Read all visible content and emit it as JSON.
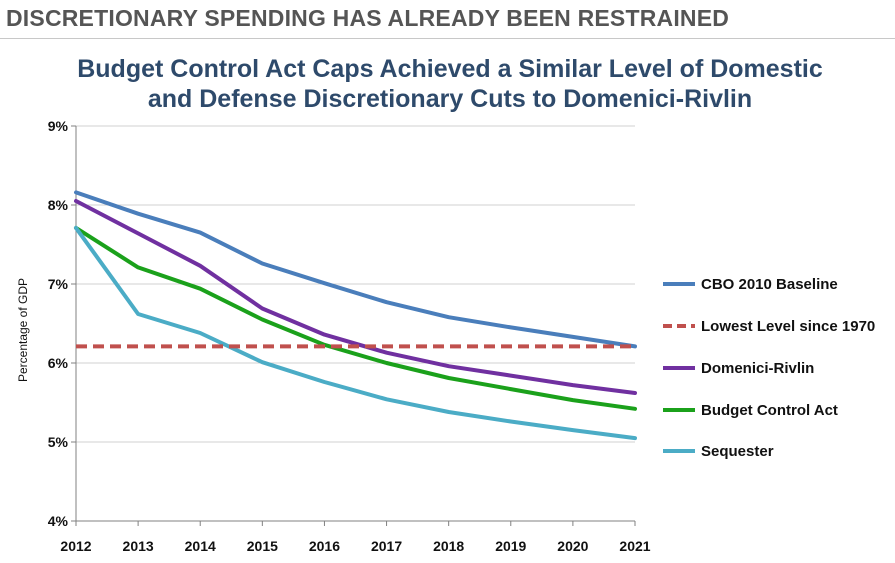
{
  "header": {
    "text": "DISCRETIONARY SPENDING HAS ALREADY BEEN RESTRAINED"
  },
  "chart_data": {
    "type": "line",
    "title_line1": "Budget Control Act Caps Achieved a Similar Level of Domestic",
    "title_line2": "and Defense Discretionary Cuts to Domenici-Rivlin",
    "ylabel": "Percentage of GDP",
    "xlabel": "",
    "x": [
      "2012",
      "2013",
      "2014",
      "2015",
      "2016",
      "2017",
      "2018",
      "2019",
      "2020",
      "2021"
    ],
    "ylim": [
      4,
      9
    ],
    "yticks": [
      4,
      5,
      6,
      7,
      8,
      9
    ],
    "ytick_labels": [
      "4%",
      "5%",
      "6%",
      "7%",
      "8%",
      "9%"
    ],
    "grid": true,
    "legend_position": "right",
    "series": [
      {
        "name": "CBO 2010 Baseline",
        "color": "#4a7ebb",
        "dashed": false,
        "values": [
          8.16,
          7.89,
          7.65,
          7.26,
          7.01,
          6.77,
          6.58,
          6.45,
          6.33,
          6.21
        ]
      },
      {
        "name": "Lowest Level since 1970",
        "color": "#c0504d",
        "dashed": true,
        "values": [
          6.21,
          6.21,
          6.21,
          6.21,
          6.21,
          6.21,
          6.21,
          6.21,
          6.21,
          6.21
        ]
      },
      {
        "name": "Domenici-Rivlin",
        "color": "#7030a0",
        "dashed": false,
        "values": [
          8.05,
          7.64,
          7.23,
          6.69,
          6.36,
          6.13,
          5.96,
          5.84,
          5.72,
          5.62
        ]
      },
      {
        "name": "Budget Control Act",
        "color": "#1ba11b",
        "dashed": false,
        "values": [
          7.71,
          7.21,
          6.94,
          6.55,
          6.23,
          6.0,
          5.81,
          5.67,
          5.53,
          5.42
        ]
      },
      {
        "name": "Sequester",
        "color": "#4bacc6",
        "dashed": false,
        "values": [
          7.71,
          6.62,
          6.38,
          6.01,
          5.76,
          5.54,
          5.38,
          5.26,
          5.15,
          5.05
        ]
      }
    ]
  }
}
